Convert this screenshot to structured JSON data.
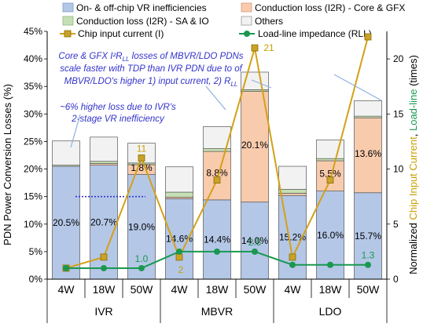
{
  "chart_data": {
    "type": "bar",
    "groups": [
      "IVR",
      "MBVR",
      "LDO"
    ],
    "categories": [
      "4W",
      "18W",
      "50W",
      "4W",
      "18W",
      "50W",
      "4W",
      "18W",
      "50W"
    ],
    "y_left": {
      "label": "PDN Power Conversion Losses (%)",
      "min": 0,
      "max": 45,
      "ticks": [
        "0%",
        "5%",
        "10%",
        "15%",
        "20%",
        "25%",
        "30%",
        "35%",
        "40%",
        "45%"
      ]
    },
    "y_right": {
      "label_prefix": "Normalized ",
      "label_current": "Chip Input Current",
      "label_sep": ", ",
      "label_loadline": "Load-line",
      "label_suffix": " (times)",
      "min": 0,
      "max": 22.5,
      "ticks": [
        "0",
        "5",
        "10",
        "15",
        "20"
      ]
    },
    "series": [
      {
        "name": "On- & off-chip VR inefficiencies",
        "color": "#b4c7e7",
        "values": [
          20.5,
          20.7,
          19.0,
          14.6,
          14.4,
          14.0,
          15.2,
          16.0,
          15.7
        ]
      },
      {
        "name": "Conduction loss (I2R) - Core & GFX",
        "color": "#f8cbad",
        "values": [
          0.0,
          0.3,
          1.8,
          0.3,
          8.8,
          20.1,
          0.4,
          5.5,
          13.6
        ]
      },
      {
        "name": "Conduction loss (I2R) - SA & IO",
        "color": "#c5e0b4",
        "values": [
          0.2,
          0.4,
          0.3,
          0.9,
          0.5,
          0.3,
          0.7,
          0.4,
          0.3
        ]
      },
      {
        "name": "Others",
        "color": "#f2f2f2",
        "values": [
          4.4,
          4.4,
          3.6,
          4.6,
          4.0,
          3.2,
          4.2,
          3.4,
          2.8
        ]
      }
    ],
    "bar_labels": [
      "20.5%",
      "20.7%",
      "19.0%",
      "14.6%",
      "14.4%",
      "14.0%",
      "15.2%",
      "16.0%",
      "15.7%"
    ],
    "gfx_labels": [
      "",
      "",
      "1.8%",
      "",
      "8.8%",
      "20.1%",
      "",
      "5.5%",
      "13.6%"
    ],
    "lines": [
      {
        "name": "Chip input current (I)",
        "color": "#d4a017",
        "marker": "square",
        "values": [
          1,
          2,
          11,
          2,
          9,
          21,
          2,
          9,
          22
        ]
      },
      {
        "name": "Load-line impedance (RLL)",
        "color": "#1a9850",
        "marker": "circle",
        "values": [
          1,
          1,
          1,
          2.5,
          2.5,
          2.5,
          1.3,
          1.3,
          1.3
        ]
      }
    ],
    "line_labels": {
      "current": [
        {
          "index": 2,
          "text": "11"
        },
        {
          "index": 3,
          "text": "2"
        },
        {
          "index": 5,
          "text": "21"
        }
      ],
      "rll": [
        {
          "index": 2,
          "text": "1.0"
        },
        {
          "index": 5,
          "text": "2.5"
        },
        {
          "index": 8,
          "text": "1.3"
        }
      ]
    },
    "annotations": {
      "main_lines": [
        "Core & GFX I²R",
        "LL",
        " losses of MBVR/LDO PDNs",
        "scale faster with TDP than IVR PDN due to of",
        "MBVR/LDO's higher 1) input current, 2) R",
        "LL"
      ],
      "ivr_lines": [
        "~6% higher loss due to IVR's",
        "2-stage VR inefficiency"
      ]
    },
    "colors": {
      "current_label": "#c9a000",
      "loadline_label": "#1a9850",
      "annotation": "#3333cc",
      "arrow": "#8fb0e0"
    }
  }
}
